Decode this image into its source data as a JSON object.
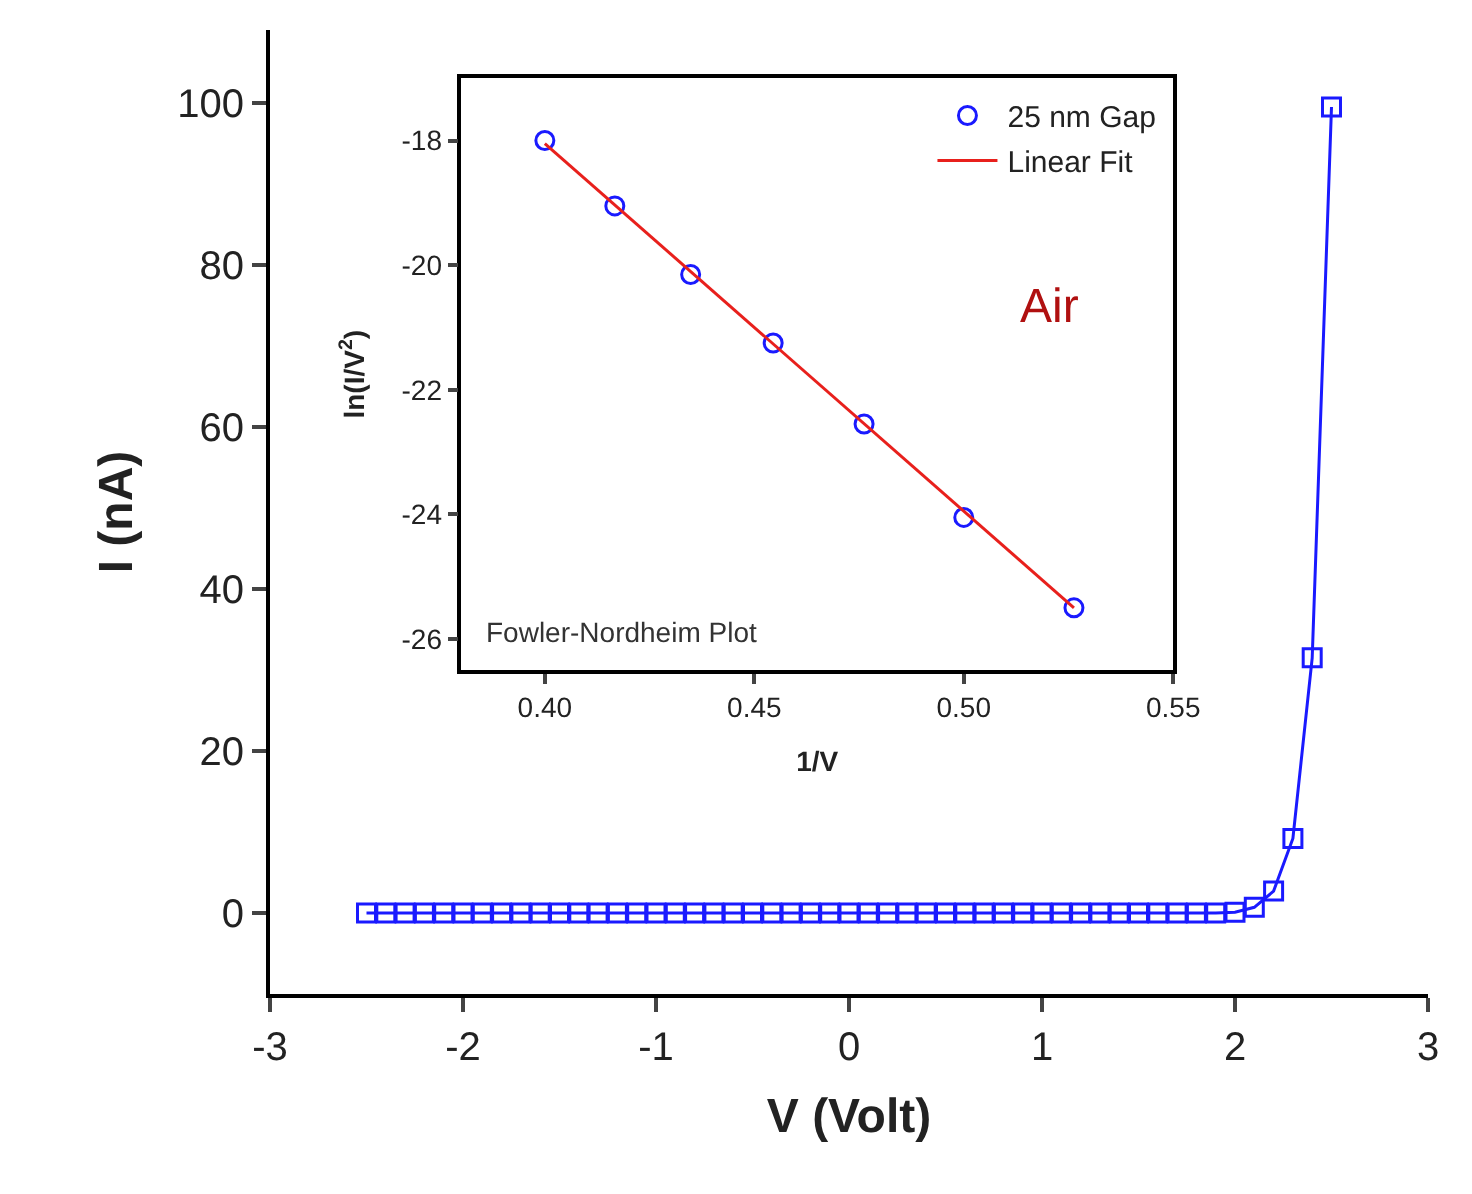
{
  "chart_data": [
    {
      "type": "line",
      "xlabel": "V (Volt)",
      "ylabel": "I (nA)",
      "marker": "square",
      "legend": false,
      "x": [
        -2.5,
        -2.4,
        -2.3,
        -2.2,
        -2.1,
        -2.0,
        -1.9,
        -1.8,
        -1.7,
        -1.6,
        -1.5,
        -1.4,
        -1.3,
        -1.2,
        -1.1,
        -1.0,
        -0.9,
        -0.8,
        -0.7,
        -0.6,
        -0.5,
        -0.4,
        -0.3,
        -0.2,
        -0.1,
        0.0,
        0.1,
        0.2,
        0.3,
        0.4,
        0.5,
        0.6,
        0.7,
        0.8,
        0.9,
        1.0,
        1.1,
        1.2,
        1.3,
        1.4,
        1.5,
        1.6,
        1.7,
        1.8,
        1.9,
        2.0,
        2.1,
        2.2,
        2.3,
        2.4,
        2.5
      ],
      "series": [
        {
          "color": "#1a1aff",
          "values": [
            0,
            0,
            0,
            0,
            0,
            0,
            0,
            0,
            0,
            0,
            0,
            0,
            0,
            0,
            0,
            0,
            0,
            0,
            0,
            0,
            0,
            0,
            0,
            0,
            0,
            0,
            0,
            0,
            0,
            0,
            0,
            0,
            0,
            0,
            0,
            0,
            0,
            0,
            0,
            0,
            0,
            0,
            0,
            0,
            0,
            0.1,
            0.7,
            2.7,
            9.2,
            31.5,
            99.5
          ]
        }
      ],
      "xlim": [
        -3,
        3
      ],
      "xticks": [
        -3,
        -2,
        -1,
        0,
        1,
        2,
        3
      ],
      "ylim": [
        -10,
        109
      ],
      "yticks": [
        0,
        20,
        40,
        60,
        80,
        100
      ]
    },
    {
      "type": "scatter",
      "xlabel": "1/V",
      "ylabel": "ln(I/V$^{2}$)",
      "legend": "top right",
      "annotations": [
        "Air",
        "Fowler-Nordheim Plot"
      ],
      "x": [
        0.4,
        0.4167,
        0.4348,
        0.4545,
        0.4762,
        0.5,
        0.5263
      ],
      "series": [
        {
          "name": "25 nm Gap",
          "type": "scatter",
          "marker": "circle",
          "color": "#1a1aff",
          "values": [
            -18.0,
            -19.05,
            -20.15,
            -21.25,
            -22.55,
            -24.05,
            -25.5
          ]
        },
        {
          "name": "Linear Fit",
          "type": "line",
          "marker": "none",
          "color": "#e8201c",
          "x": [
            0.4,
            0.5263
          ],
          "values": [
            -18.05,
            -25.5
          ]
        }
      ],
      "xlim": [
        0.38,
        0.55
      ],
      "xticks": [
        {
          "value": 0.4,
          "label": "0.40"
        },
        {
          "value": 0.45,
          "label": "0.45"
        },
        {
          "value": 0.5,
          "label": "0.50"
        },
        {
          "value": 0.55,
          "label": "0.55"
        }
      ],
      "ylim": [
        -26.5,
        -17
      ],
      "yticks": [
        -18,
        -20,
        -22,
        -24,
        -26
      ]
    }
  ]
}
